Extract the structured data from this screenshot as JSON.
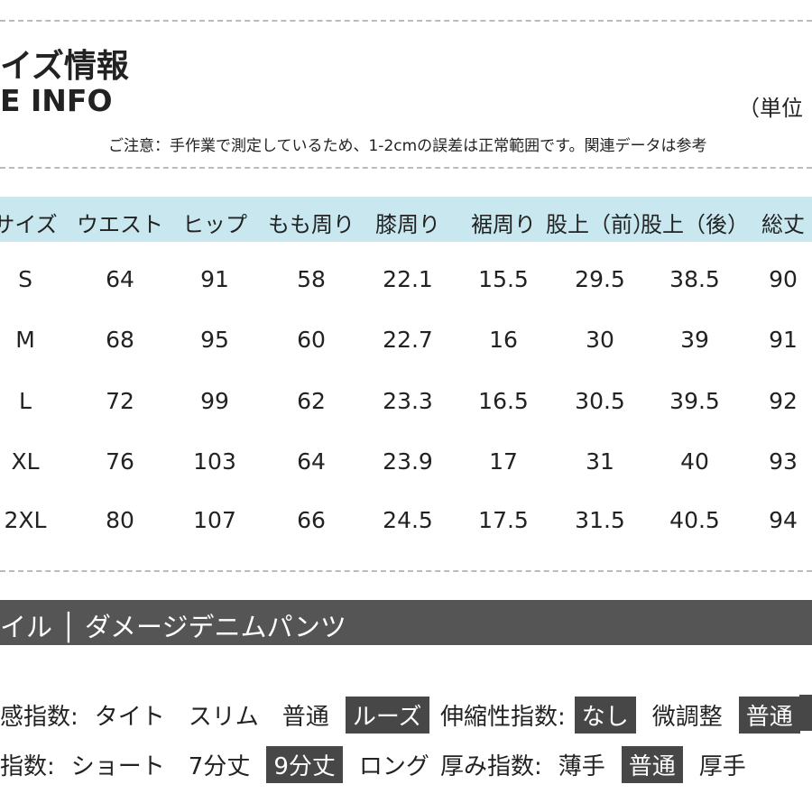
{
  "header": {
    "title": "イズ情報",
    "subtitle": "E INFO",
    "unit": "（単位",
    "note": "ご注意：手作業で測定しているため、1-2cmの誤差は正常範囲です。関連データは参考"
  },
  "table": {
    "columns": [
      "サイズ",
      "ウエスト",
      "ヒップ",
      "もも周り",
      "膝周り",
      "裾周り",
      "股上（前）",
      "股上（後）",
      "総丈"
    ],
    "rows": [
      [
        "S",
        64,
        91,
        58,
        22.1,
        15.5,
        29.5,
        38.5,
        90
      ],
      [
        "M",
        68,
        95,
        60,
        22.7,
        16,
        30,
        39,
        91
      ],
      [
        "L",
        72,
        99,
        62,
        23.3,
        16.5,
        30.5,
        39.5,
        92
      ],
      [
        "XL",
        76,
        103,
        64,
        23.9,
        17,
        31,
        40,
        93
      ],
      [
        "2XL",
        80,
        107,
        66,
        24.5,
        17.5,
        31.5,
        40.5,
        94
      ]
    ]
  },
  "style_bar": "イル │ ダメージデニムパンツ",
  "attributes": [
    {
      "label": "感指数:",
      "options": [
        {
          "text": "タイト",
          "selected": false
        },
        {
          "text": "スリム",
          "selected": false
        },
        {
          "text": "普通",
          "selected": false
        },
        {
          "text": "ルーズ",
          "selected": true
        }
      ]
    },
    {
      "label": "伸縮性指数:",
      "options": [
        {
          "text": "なし",
          "selected": true
        },
        {
          "text": "微調整",
          "selected": false
        },
        {
          "text": "普通",
          "selected": true
        }
      ]
    },
    {
      "label": "指数:",
      "options": [
        {
          "text": "ショート",
          "selected": false
        },
        {
          "text": "7分丈",
          "selected": false
        },
        {
          "text": "9分丈",
          "selected": true
        },
        {
          "text": "ロング",
          "selected": false
        }
      ]
    },
    {
      "label": "厚み指数:",
      "options": [
        {
          "text": "薄手",
          "selected": false
        },
        {
          "text": "普通",
          "selected": true
        },
        {
          "text": "厚手",
          "selected": false
        }
      ]
    }
  ]
}
